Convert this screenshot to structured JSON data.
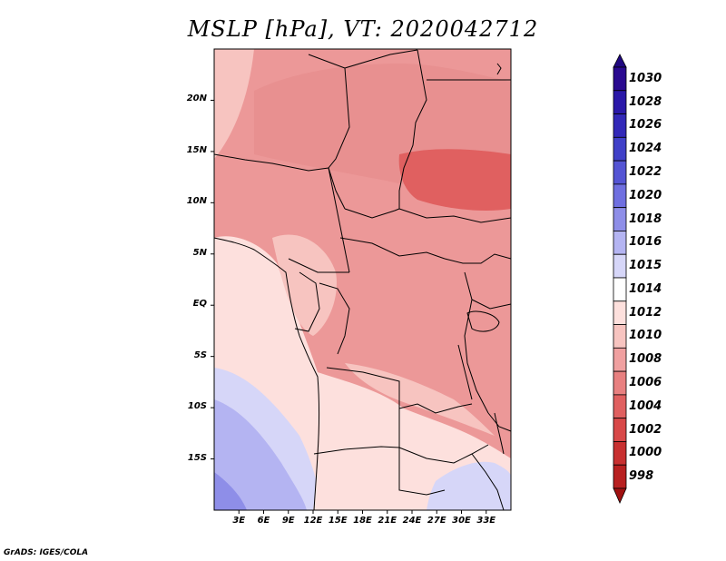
{
  "title": "MSLP [hPa], VT: 2020042712",
  "credit": "GrADS: IGES/COLA",
  "map": {
    "lon_range": [
      0,
      36
    ],
    "lat_range": [
      -20,
      25
    ],
    "y_ticks": [
      {
        "label": "20N",
        "lat": 20
      },
      {
        "label": "15N",
        "lat": 15
      },
      {
        "label": "10N",
        "lat": 10
      },
      {
        "label": "5N",
        "lat": 5
      },
      {
        "label": "EQ",
        "lat": 0
      },
      {
        "label": "5S",
        "lat": -5
      },
      {
        "label": "10S",
        "lat": -10
      },
      {
        "label": "15S",
        "lat": -15
      }
    ],
    "x_ticks": [
      {
        "label": "3E",
        "lon": 3
      },
      {
        "label": "6E",
        "lon": 6
      },
      {
        "label": "9E",
        "lon": 9
      },
      {
        "label": "12E",
        "lon": 12
      },
      {
        "label": "15E",
        "lon": 15
      },
      {
        "label": "18E",
        "lon": 18
      },
      {
        "label": "21E",
        "lon": 21
      },
      {
        "label": "24E",
        "lon": 24
      },
      {
        "label": "27E",
        "lon": 27
      },
      {
        "label": "30E",
        "lon": 30
      },
      {
        "label": "33E",
        "lon": 33
      }
    ]
  },
  "colorbar": {
    "levels": [
      {
        "label": "1030",
        "color": "#2a0a90"
      },
      {
        "label": "1028",
        "color": "#2a18a8"
      },
      {
        "label": "1026",
        "color": "#3228b8"
      },
      {
        "label": "1024",
        "color": "#4040c8"
      },
      {
        "label": "1022",
        "color": "#5454d4"
      },
      {
        "label": "1020",
        "color": "#6f6fe0"
      },
      {
        "label": "1018",
        "color": "#8e8ee8"
      },
      {
        "label": "1016",
        "color": "#b4b4f2"
      },
      {
        "label": "1015",
        "color": "#d6d6f8"
      },
      {
        "label": "1014",
        "color": "#ffffff"
      },
      {
        "label": "1012",
        "color": "#fde0dd"
      },
      {
        "label": "1010",
        "color": "#f7c4c0"
      },
      {
        "label": "1008",
        "color": "#f0a0a0"
      },
      {
        "label": "1006",
        "color": "#e88080"
      },
      {
        "label": "1004",
        "color": "#e06060"
      },
      {
        "label": "1002",
        "color": "#d84848"
      },
      {
        "label": "1000",
        "color": "#c83030"
      },
      {
        "label": "998",
        "color": "#b82020"
      }
    ],
    "top_color": "#200880",
    "bottom_color": "#a01010"
  },
  "fields": {
    "ocean_northwest": "#f7c4c0",
    "land_north": "#e89090",
    "land_central": "#ec9898",
    "gulf_guinea": "#fde0dd",
    "south_atlantic_cool": "#d6d6f8",
    "south_atlantic_cooler": "#b4b4f2",
    "south_atlantic_coolest": "#8e8ee8",
    "southern_africa": "#fde0dd",
    "highlands_light": "#f7c4c0",
    "sudan_low": "#e06060",
    "mozambique_high": "#d6d6f8"
  }
}
